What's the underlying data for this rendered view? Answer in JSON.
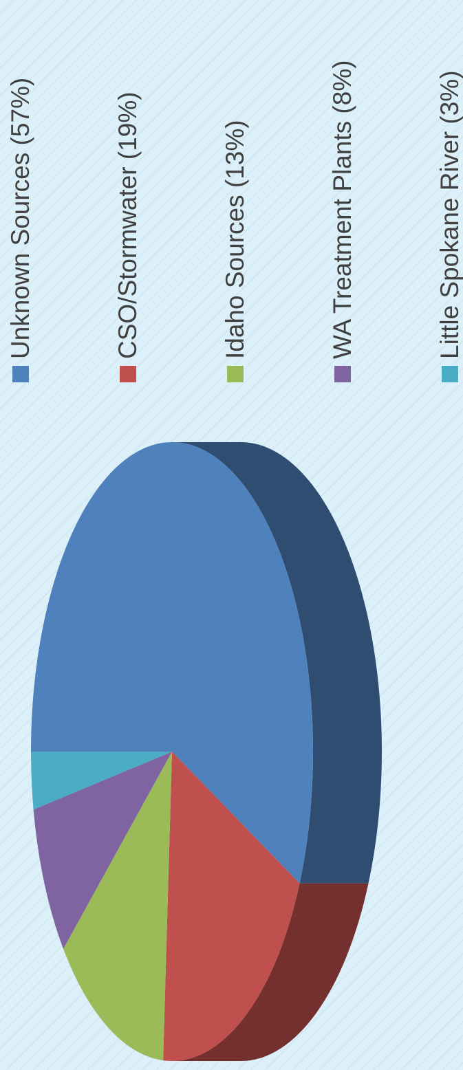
{
  "chart_data": {
    "type": "pie",
    "categories": [
      "Unknown Sources (57%)",
      "CSO/Stormwater (19%)",
      "Idaho Sources (13%)",
      "WA Treatment Plants (8%)",
      "Little Spokane River (3%)"
    ],
    "values": [
      57,
      19,
      13,
      8,
      3
    ],
    "colors": [
      "#4f81bd",
      "#c0504d",
      "#9bbb59",
      "#8064a2",
      "#4bacc6"
    ],
    "legend": "right"
  }
}
